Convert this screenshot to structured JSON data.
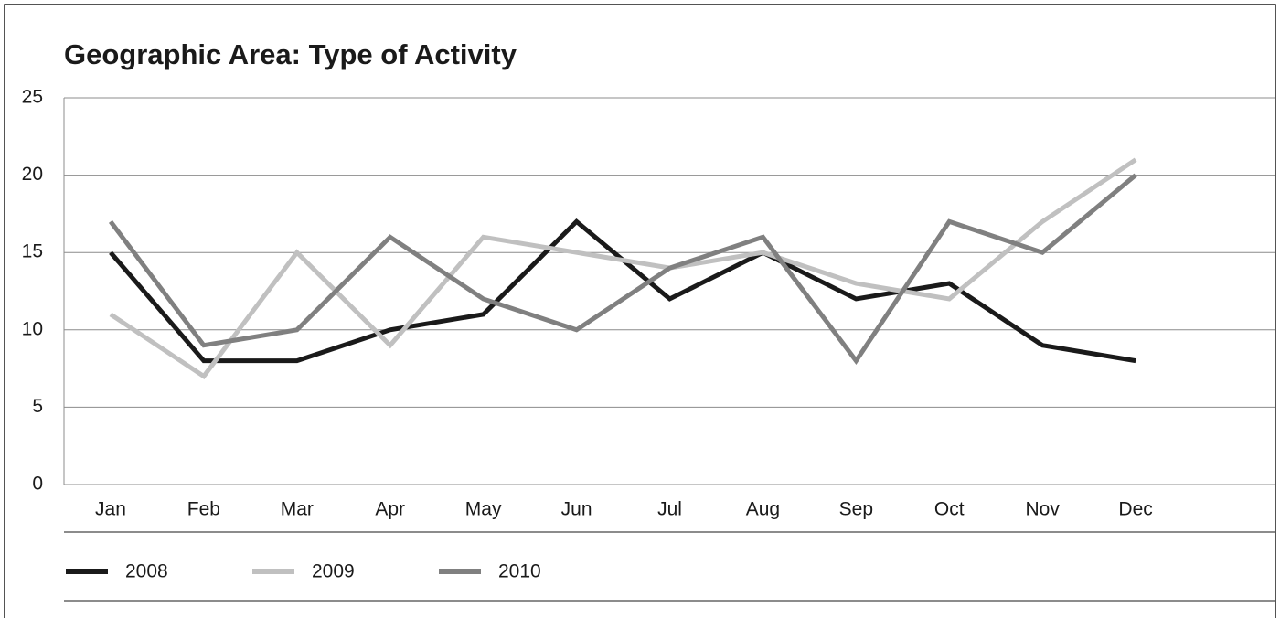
{
  "chart_data": {
    "type": "line",
    "title": "Geographic Area: Type of Activity",
    "categories": [
      "Jan",
      "Feb",
      "Mar",
      "Apr",
      "May",
      "Jun",
      "Jul",
      "Aug",
      "Sep",
      "Oct",
      "Nov",
      "Dec"
    ],
    "series": [
      {
        "name": "2008",
        "color": "#1a1a1a",
        "values": [
          15,
          8,
          8,
          10,
          11,
          17,
          12,
          15,
          12,
          13,
          9,
          8
        ]
      },
      {
        "name": "2009",
        "color": "#c0c0c0",
        "values": [
          11,
          7,
          15,
          9,
          16,
          15,
          14,
          15,
          13,
          12,
          17,
          21
        ]
      },
      {
        "name": "2010",
        "color": "#808080",
        "values": [
          17,
          9,
          10,
          16,
          12,
          10,
          14,
          16,
          8,
          17,
          15,
          20
        ]
      }
    ],
    "ylim": [
      0,
      25
    ],
    "yticks": [
      0,
      5,
      10,
      15,
      20,
      25
    ],
    "grid": true,
    "legend": "bottom"
  }
}
